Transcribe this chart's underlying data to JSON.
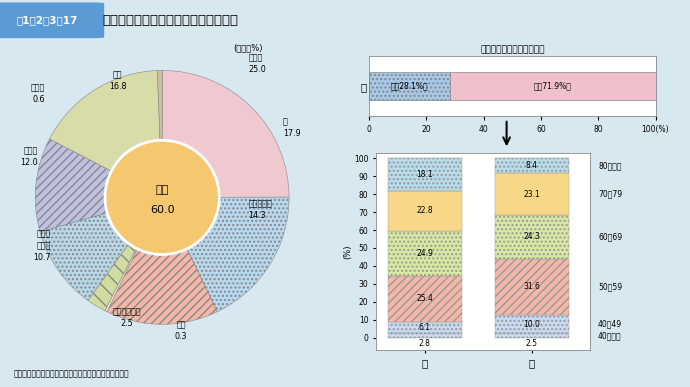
{
  "title_box": "図1－2－3－17",
  "title_text": "要介護者等からみた主な介護者の続柄",
  "bg_color": "#d8e8f0",
  "pie_values": [
    25.0,
    17.9,
    14.3,
    0.3,
    2.5,
    10.7,
    12.0,
    16.8,
    0.6
  ],
  "pie_labels": [
    "配偶者\n25.0",
    "子\n17.9",
    "子の配偶者\n14.3",
    "父母\n0.3",
    "その他の親族\n2.5",
    "別居の\n家族等\n10.7",
    "事業者\n12.0",
    "不詳\n16.8",
    "その他\n0.6"
  ],
  "pie_colors": [
    "#f0c8d0",
    "#b8d8f0",
    "#f5b8a8",
    "#f8e8c0",
    "#d0dca0",
    "#b8d8e8",
    "#c0c0e0",
    "#d8dca8",
    "#d0c0a0"
  ],
  "pie_hatches": [
    "",
    "....",
    "////",
    "",
    "\\\\",
    "....",
    "////",
    "====",
    ""
  ],
  "inner_color": "#f5c870",
  "inner_label1": "同居",
  "inner_label2": "60.0",
  "unit_label": "(単位：%)",
  "bar_title": "主な介護者の性・年齢階級",
  "gender_label": "性",
  "male_label": "男（28.1%）",
  "female_label": "女（71.9%）",
  "male_pct": 28.1,
  "female_pct": 71.9,
  "male_bar_color": "#a8c8e8",
  "female_bar_color": "#f0c0cc",
  "male_hatch": "....",
  "female_hatch": "",
  "age_labels": [
    "40歳未満",
    "40～49",
    "50～59",
    "60～69",
    "70～79",
    "80歳以上"
  ],
  "male_vals": [
    2.8,
    6.1,
    25.4,
    24.9,
    22.8,
    18.1
  ],
  "female_vals": [
    2.5,
    10.0,
    31.6,
    24.3,
    23.1,
    8.4
  ],
  "stack_colors": [
    "#c8daf0",
    "#c8daf0",
    "#f5b8a8",
    "#d8e8a0",
    "#f8d888",
    "#b8dcea"
  ],
  "stack_hatches": [
    "....",
    "....",
    "////",
    "....",
    "====",
    "...."
  ],
  "yticks": [
    0,
    10,
    20,
    30,
    40,
    50,
    60,
    70,
    80,
    90,
    100
  ],
  "source": "資料：厚生労働省「国民生活基礎調査」（平成１９年）"
}
